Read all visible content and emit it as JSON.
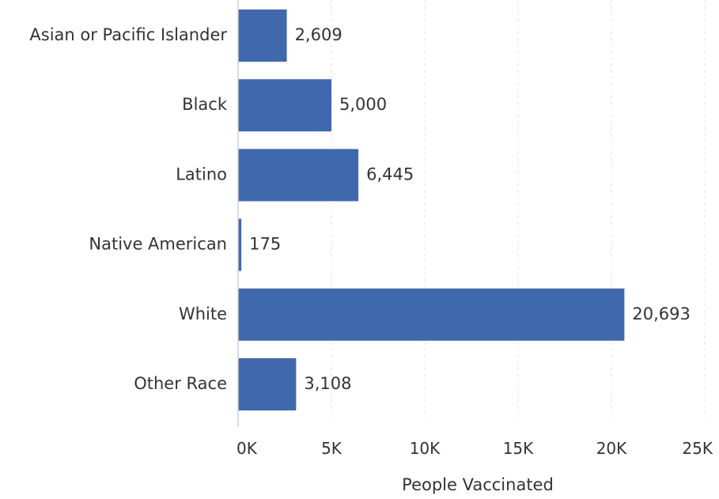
{
  "chart_data": {
    "type": "bar",
    "orientation": "horizontal",
    "categories": [
      "Asian or Pacific Islander",
      "Black",
      "Latino",
      "Native American",
      "White",
      "Other Race"
    ],
    "values": [
      2609,
      5000,
      6445,
      175,
      20693,
      3108
    ],
    "value_labels": [
      "2,609",
      "5,000",
      "6,445",
      "175",
      "20,693",
      "3,108"
    ],
    "xlabel": "People Vaccinated",
    "ylabel": "",
    "xlim": [
      0,
      25000
    ],
    "xticks": [
      0,
      5000,
      10000,
      15000,
      20000,
      25000
    ],
    "xtick_labels": [
      "0K",
      "5K",
      "10K",
      "15K",
      "20K",
      "25K"
    ],
    "grid": true,
    "legend": "none",
    "bar_color": "#4068ad"
  }
}
